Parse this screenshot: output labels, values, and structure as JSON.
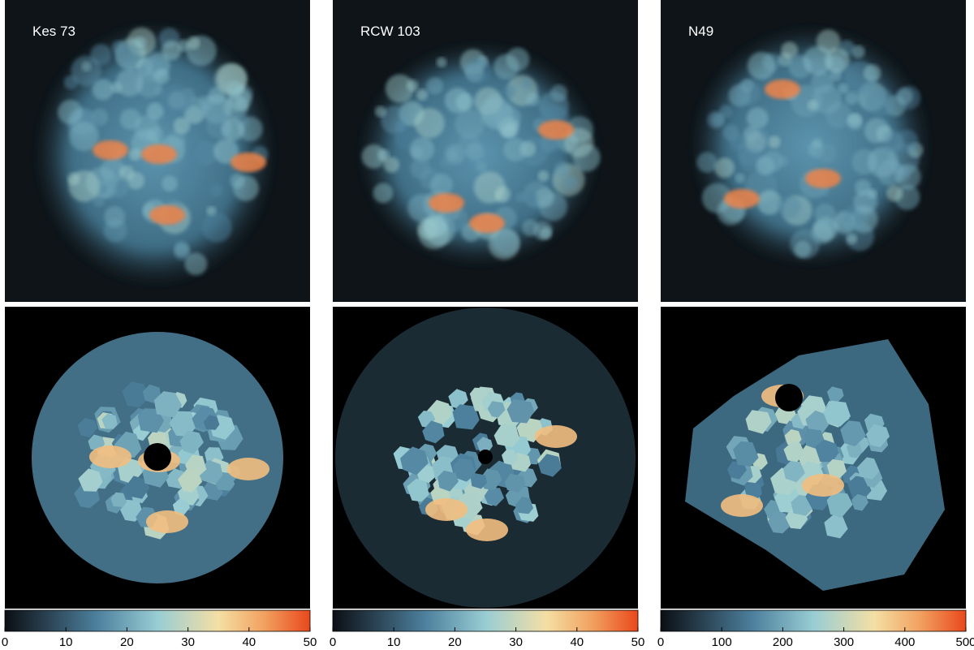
{
  "panels": [
    {
      "title": "Kes 73",
      "colorbar": {
        "lim": [
          0,
          50
        ],
        "ticks": [
          0,
          10,
          20,
          30,
          40,
          50
        ]
      }
    },
    {
      "title": "RCW 103",
      "colorbar": {
        "lim": [
          0,
          50
        ],
        "ticks": [
          0,
          10,
          20,
          30,
          40,
          50
        ]
      }
    },
    {
      "title": "N49",
      "colorbar": {
        "lim": [
          0,
          500
        ],
        "ticks": [
          0,
          100,
          200,
          300,
          400,
          500
        ]
      }
    }
  ]
}
